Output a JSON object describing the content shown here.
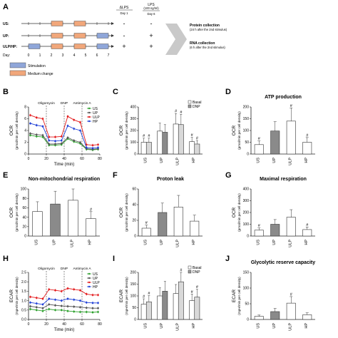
{
  "panel_letters": [
    "A",
    "B",
    "C",
    "D",
    "E",
    "F",
    "G",
    "H",
    "I",
    "J"
  ],
  "panel_a": {
    "rows": [
      "US:",
      "UP:",
      "ULP/HP:"
    ],
    "day_label": "Day:",
    "days": [
      "0",
      "1",
      "2",
      "3",
      "4",
      "5",
      "6",
      "7"
    ],
    "col_heads": [
      {
        "title": "ΔLPS",
        "sub": "Day 1"
      },
      {
        "title": "LPS",
        "note": "(100 ng/ml)",
        "sub": "Day 6"
      }
    ],
    "row_signs": [
      [
        "-",
        "-"
      ],
      [
        "-",
        "+"
      ],
      [
        "+",
        "+"
      ]
    ],
    "legend": [
      {
        "label": "Stimulation",
        "color": "#8fa6d9"
      },
      {
        "label": "Medium change",
        "color": "#f1a77b"
      }
    ],
    "protein": {
      "title": "Protein collection",
      "sub": "(24 h after the 2nd stimulus)"
    },
    "rna": {
      "title": "RNA collection",
      "sub": "(6 h after the 2nd stimulus)"
    }
  },
  "chart_data": [
    {
      "panel": "B",
      "type": "line",
      "title": "",
      "xlabel": "Time (min)",
      "ylabel": "OCR",
      "ylabel2": "(pmol/min per cell density)",
      "xlim": [
        0,
        80
      ],
      "ylim": [
        0,
        8
      ],
      "xticks": [
        "0",
        "20",
        "40",
        "60",
        "80"
      ],
      "yticks": [
        "0",
        "2",
        "4",
        "6",
        "8"
      ],
      "injections": [
        {
          "label": "Oligomycin",
          "x": 20
        },
        {
          "label": "DNP",
          "x": 40
        },
        {
          "label": "Antimycin A",
          "x": 60
        }
      ],
      "x": [
        2,
        9,
        16,
        23,
        30,
        37,
        44,
        51,
        58,
        65,
        72,
        78
      ],
      "series": [
        {
          "name": "US",
          "color": "#2ca02c",
          "values": [
            3.2,
            3.0,
            2.9,
            1.5,
            1.5,
            1.6,
            2.6,
            2.1,
            1.8,
            0.8,
            0.7,
            0.8
          ]
        },
        {
          "name": "UP",
          "color": "#555555",
          "values": [
            3.5,
            3.3,
            3.2,
            1.7,
            1.7,
            1.8,
            2.8,
            2.3,
            2.0,
            0.9,
            0.8,
            0.9
          ]
        },
        {
          "name": "ULP",
          "color": "#e31a1c",
          "values": [
            6.6,
            6.2,
            6.0,
            2.9,
            2.9,
            3.0,
            6.4,
            5.8,
            5.4,
            1.6,
            1.5,
            1.6
          ]
        },
        {
          "name": "HP",
          "color": "#1f3fd6",
          "values": [
            5.2,
            4.9,
            4.7,
            2.3,
            2.2,
            2.3,
            4.8,
            4.3,
            4.0,
            1.1,
            1.0,
            1.1
          ]
        }
      ]
    },
    {
      "panel": "C",
      "type": "bar",
      "title": "",
      "ylabel": "OCR",
      "ylabel2": "(pmol/min per cell density)",
      "ylim": [
        0,
        400
      ],
      "yticks": [
        "0",
        "100",
        "200",
        "300",
        "400"
      ],
      "categories": [
        "US",
        "UP",
        "ULP",
        "HP"
      ],
      "legend": [
        "Basal",
        "DNP"
      ],
      "series": [
        {
          "name": "Basal",
          "values": [
            100,
            195,
            255,
            105
          ]
        },
        {
          "name": "DNP",
          "values": [
            100,
            185,
            250,
            85
          ]
        }
      ],
      "markers": [
        [
          "#",
          "#"
        ],
        [
          "",
          ""
        ],
        [
          "#",
          "#"
        ],
        [
          "#",
          "#"
        ]
      ]
    },
    {
      "panel": "D",
      "type": "bar",
      "title": "ATP production",
      "ylabel": "OCR",
      "ylabel2": "(pmol/min per cell density)",
      "ylim": [
        0,
        200
      ],
      "yticks": [
        "0",
        "50",
        "100",
        "150",
        "200"
      ],
      "categories": [
        "US",
        "UP",
        "ULP",
        "HP"
      ],
      "values": [
        40,
        98,
        140,
        50
      ],
      "markers": [
        "#",
        "",
        "#",
        "#"
      ]
    },
    {
      "panel": "E",
      "type": "bar",
      "title": "Non-mitochondrial respiration",
      "ylabel": "OCR",
      "ylabel2": "(pmol/min per cell density)",
      "ylim": [
        0,
        100
      ],
      "yticks": [
        "0",
        "20",
        "40",
        "60",
        "80",
        "100"
      ],
      "categories": [
        "US",
        "UP",
        "ULP",
        "HP"
      ],
      "values": [
        52,
        68,
        76,
        37
      ],
      "markers": [
        "",
        "",
        "",
        "#"
      ]
    },
    {
      "panel": "F",
      "type": "bar",
      "title": "Proton leak",
      "ylabel": "OCR",
      "ylabel2": "(pmol/min per cell density)",
      "ylim": [
        0,
        60
      ],
      "yticks": [
        "0",
        "20",
        "40",
        "60"
      ],
      "categories": [
        "US",
        "UP",
        "ULP",
        "HP"
      ],
      "values": [
        10,
        30,
        37,
        19
      ],
      "markers": [
        "#",
        "",
        "",
        ""
      ]
    },
    {
      "panel": "G",
      "type": "bar",
      "title": "Maximal respiration",
      "ylabel": "OCR",
      "ylabel2": "(pmol/min per cell density)",
      "ylim": [
        0,
        400
      ],
      "yticks": [
        "0",
        "100",
        "200",
        "300",
        "400"
      ],
      "categories": [
        "US",
        "UP",
        "ULP",
        "HP"
      ],
      "values": [
        50,
        100,
        160,
        55
      ],
      "markers": [
        "#",
        "",
        "",
        "#"
      ]
    },
    {
      "panel": "H",
      "type": "line",
      "title": "",
      "xlabel": "Time (min)",
      "ylabel": "ECAR",
      "ylabel2": "(mpH/min per cell density)",
      "xlim": [
        0,
        80
      ],
      "ylim": [
        0,
        2.5
      ],
      "xticks": [
        "0",
        "20",
        "40",
        "60",
        "80"
      ],
      "yticks": [
        "0.0",
        "0.5",
        "1.0",
        "1.5",
        "2.0",
        "2.5"
      ],
      "injections": [
        {
          "label": "Oligomycin",
          "x": 20
        },
        {
          "label": "DNP",
          "x": 40
        },
        {
          "label": "Antimycin A",
          "x": 60
        }
      ],
      "x": [
        2,
        9,
        16,
        23,
        30,
        37,
        44,
        51,
        58,
        65,
        72,
        78
      ],
      "series": [
        {
          "name": "US",
          "color": "#2ca02c",
          "values": [
            0.55,
            0.5,
            0.45,
            0.55,
            0.5,
            0.5,
            0.45,
            0.42,
            0.4,
            0.4,
            0.38,
            0.4
          ]
        },
        {
          "name": "UP",
          "color": "#555555",
          "values": [
            0.7,
            0.65,
            0.6,
            0.8,
            0.75,
            0.72,
            0.7,
            0.68,
            0.65,
            0.62,
            0.6,
            0.6
          ]
        },
        {
          "name": "ULP",
          "color": "#e31a1c",
          "values": [
            1.2,
            1.15,
            1.1,
            1.6,
            1.55,
            1.5,
            1.65,
            1.6,
            1.55,
            1.35,
            1.3,
            1.3
          ]
        },
        {
          "name": "HP",
          "color": "#1f3fd6",
          "values": [
            0.9,
            0.85,
            0.8,
            1.1,
            1.05,
            1.0,
            1.1,
            1.05,
            1.0,
            0.9,
            0.88,
            0.88
          ]
        }
      ]
    },
    {
      "panel": "I",
      "type": "bar",
      "title": "",
      "ylabel": "ECAR",
      "ylabel2": "(mpH/min per cell density)",
      "ylim": [
        0,
        200
      ],
      "yticks": [
        "0",
        "50",
        "100",
        "150",
        "200"
      ],
      "categories": [
        "US",
        "UP",
        "ULP",
        "HP"
      ],
      "legend": [
        "Basal",
        "DNP"
      ],
      "series": [
        {
          "name": "Basal",
          "values": [
            65,
            100,
            110,
            80
          ]
        },
        {
          "name": "DNP",
          "values": [
            75,
            120,
            160,
            95
          ]
        }
      ],
      "markers": [
        [
          "#",
          "#"
        ],
        [
          "",
          ""
        ],
        [
          "",
          "#"
        ],
        [
          "#",
          "#"
        ]
      ]
    },
    {
      "panel": "J",
      "type": "bar",
      "title": "Glycolytic reserve capacity",
      "ylabel": "ECAR",
      "ylabel2": "(mpH/min per cell density)",
      "ylim": [
        0,
        150
      ],
      "yticks": [
        "0",
        "50",
        "100",
        "150"
      ],
      "categories": [
        "US",
        "UP",
        "ULP",
        "HP"
      ],
      "values": [
        10,
        25,
        52,
        15
      ],
      "markers": [
        "",
        "",
        "#",
        ""
      ]
    }
  ]
}
